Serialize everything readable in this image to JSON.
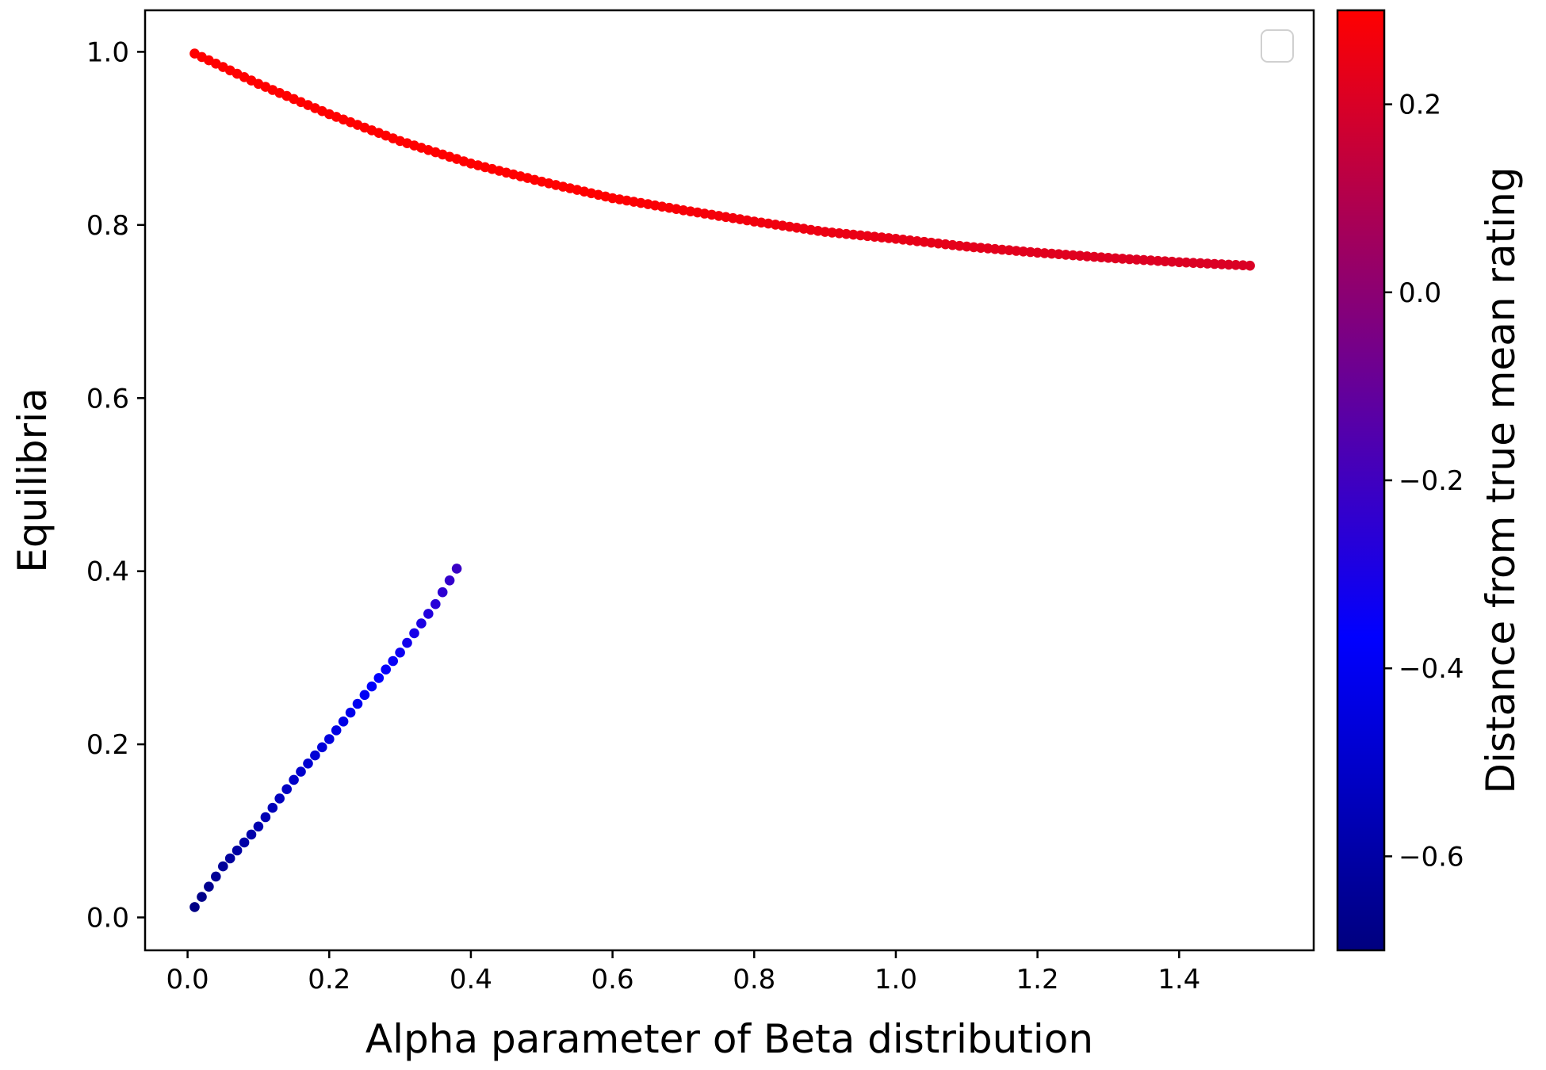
{
  "chart_data": {
    "type": "scatter",
    "title": "",
    "xlabel": "Alpha parameter of Beta distribution",
    "ylabel": "Equilibria",
    "xlim": [
      -0.06,
      1.59
    ],
    "ylim": [
      -0.038,
      1.048
    ],
    "xticks": [
      "0.0",
      "0.2",
      "0.4",
      "0.6",
      "0.8",
      "1.0",
      "1.2",
      "1.4"
    ],
    "xtick_values": [
      0,
      0.2,
      0.4,
      0.6,
      0.8,
      1.0,
      1.2,
      1.4
    ],
    "yticks": [
      "0.0",
      "0.2",
      "0.4",
      "0.6",
      "0.8",
      "1.0"
    ],
    "ytick_values": [
      0,
      0.2,
      0.4,
      0.6,
      0.8,
      1.0
    ],
    "grid": false,
    "legend": {
      "placement": "top-right",
      "entries": []
    },
    "colorbar": {
      "label": "Distance from true mean rating",
      "range": [
        -0.7,
        0.3
      ],
      "ticks": [
        "−0.6",
        "−0.4",
        "−0.2",
        "0.0",
        "0.2"
      ],
      "tick_values": [
        -0.6,
        -0.4,
        -0.2,
        0.0,
        0.2
      ],
      "colormap": [
        "#00007f",
        "#0000ff",
        "#7f007f",
        "#ff0000"
      ]
    },
    "series": [
      {
        "x_start": 0.01,
        "x_end": 1.5,
        "x_step": 0.01,
        "x": [
          0.01,
          0.1,
          0.2,
          0.3,
          0.4,
          0.5,
          0.6,
          0.7,
          0.8,
          0.9,
          1.0,
          1.1,
          1.2,
          1.3,
          1.4,
          1.5
        ],
        "y": [
          0.998,
          0.963,
          0.928,
          0.897,
          0.871,
          0.85,
          0.831,
          0.817,
          0.804,
          0.792,
          0.784,
          0.775,
          0.768,
          0.762,
          0.757,
          0.753
        ]
      },
      {
        "x_start": 0.01,
        "x_end": 0.38,
        "x_step": 0.01,
        "x": [
          0.01,
          0.05,
          0.1,
          0.15,
          0.2,
          0.25,
          0.3,
          0.35,
          0.38
        ],
        "y": [
          0.012,
          0.059,
          0.105,
          0.159,
          0.206,
          0.257,
          0.306,
          0.362,
          0.403
        ]
      }
    ]
  }
}
